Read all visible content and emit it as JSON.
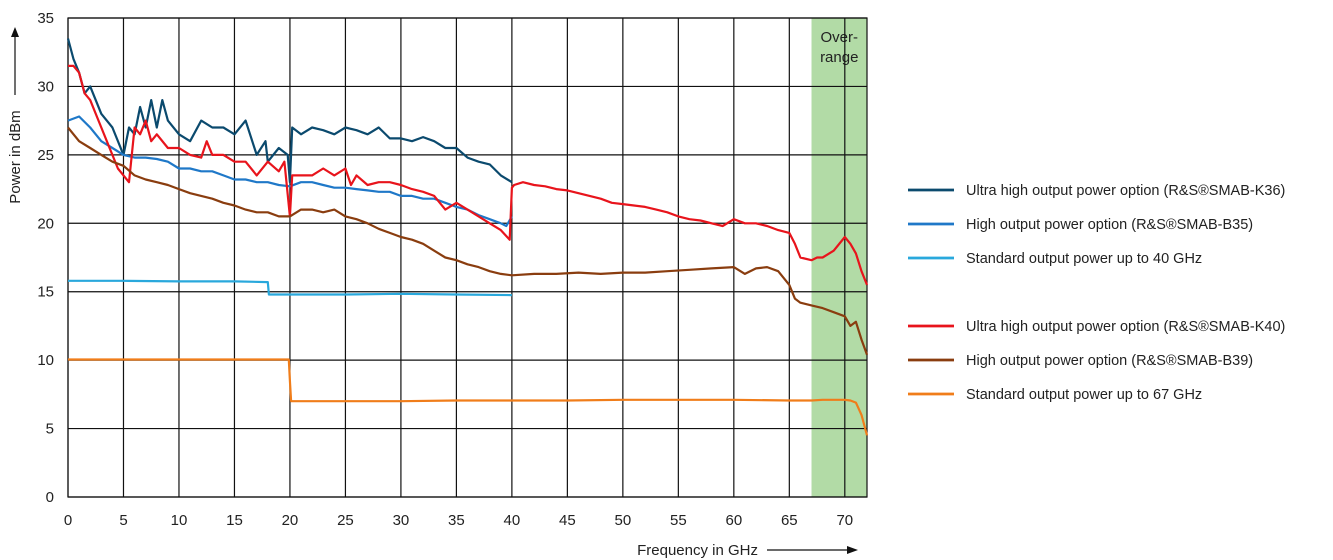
{
  "chart_data": {
    "type": "line",
    "xlabel": "Frequency in GHz",
    "ylabel": "Power in dBm",
    "xlim": [
      0,
      72
    ],
    "ylim": [
      0,
      35
    ],
    "x_ticks": [
      0,
      5,
      10,
      15,
      20,
      25,
      30,
      35,
      40,
      45,
      50,
      55,
      60,
      65,
      70
    ],
    "y_ticks": [
      0,
      5,
      10,
      15,
      20,
      25,
      30,
      35
    ],
    "grid": true,
    "legend_placement": "right",
    "overrange": {
      "label_lines": [
        "Over-",
        "range"
      ],
      "x_start": 67,
      "x_end": 72,
      "color": "#b2dba6"
    },
    "series": [
      {
        "name": "Ultra high output power option (R&S®SMAB-K36)",
        "color": "#0b4a6e",
        "x": [
          0,
          0.5,
          1,
          1.5,
          2,
          3,
          4,
          5,
          5.5,
          6,
          6.5,
          7,
          7.5,
          8,
          8.5,
          9,
          10,
          11,
          12,
          13,
          14,
          15,
          16,
          17,
          17.8,
          18,
          19,
          19.8,
          20,
          20.2,
          21,
          22,
          23,
          24,
          25,
          26,
          27,
          28,
          29,
          30,
          31,
          32,
          33,
          34,
          35,
          36,
          37,
          38,
          39,
          40
        ],
        "y": [
          33.5,
          32,
          31,
          29.5,
          30,
          28,
          27,
          25,
          27,
          26.5,
          28.5,
          27,
          29,
          27,
          29,
          27.5,
          26.5,
          26,
          27.5,
          27,
          27,
          26.5,
          27.5,
          25,
          26,
          24.5,
          25.5,
          25,
          23,
          27,
          26.5,
          27,
          26.8,
          26.5,
          27,
          26.8,
          26.5,
          27,
          26.2,
          26.2,
          26,
          26.3,
          26,
          25.5,
          25.5,
          24.8,
          24.5,
          24.3,
          23.5,
          23
        ]
      },
      {
        "name": "High output power option (R&S®SMAB-B35)",
        "color": "#1f78c8",
        "x": [
          0,
          1,
          2,
          3,
          4,
          5,
          6,
          7,
          8,
          9,
          10,
          11,
          12,
          13,
          14,
          15,
          16,
          17,
          18,
          19,
          20,
          21,
          22,
          23,
          24,
          25,
          26,
          27,
          28,
          29,
          30,
          31,
          32,
          33,
          34,
          35,
          36,
          37,
          38,
          39,
          39.5,
          40
        ],
        "y": [
          27.5,
          27.8,
          27,
          26,
          25.5,
          25,
          24.8,
          24.8,
          24.7,
          24.5,
          24,
          24,
          23.8,
          23.8,
          23.5,
          23.2,
          23.2,
          23,
          23,
          22.8,
          22.7,
          23,
          23,
          22.8,
          22.6,
          22.6,
          22.5,
          22.4,
          22.3,
          22.3,
          22,
          22,
          21.8,
          21.8,
          21.5,
          21.2,
          21,
          20.6,
          20.3,
          20,
          19.8,
          20.5
        ]
      },
      {
        "name": "Standard output power up to 40 GHz",
        "color": "#29a8dc",
        "x": [
          0,
          5,
          10,
          15,
          18,
          18.1,
          20,
          25,
          30,
          35,
          40
        ],
        "y": [
          15.8,
          15.8,
          15.75,
          15.75,
          15.7,
          14.8,
          14.8,
          14.8,
          14.85,
          14.8,
          14.75
        ]
      },
      {
        "name": "Ultra high output power option (R&S®SMAB-K40)",
        "color": "#e8141c",
        "x": [
          0,
          0.5,
          1,
          1.5,
          2,
          3,
          4,
          4.5,
          5,
          5.5,
          6,
          6.5,
          7,
          7.5,
          8,
          9,
          10,
          11,
          12,
          12.5,
          13,
          14,
          15,
          16,
          17,
          18,
          19,
          19.5,
          20,
          20.2,
          21,
          22,
          23,
          24,
          25,
          25.5,
          26,
          27,
          28,
          29,
          30,
          31,
          32,
          33,
          34,
          35,
          36,
          37,
          38,
          39,
          39.8,
          40,
          40.2,
          41,
          42,
          43,
          44,
          45,
          46,
          47,
          48,
          49,
          50,
          51,
          52,
          53,
          54,
          55,
          56,
          57,
          58,
          59,
          60,
          61,
          62,
          63,
          64,
          65,
          65.5,
          66,
          67,
          67.5,
          68,
          69,
          70,
          70.5,
          71,
          71.5,
          72
        ],
        "y": [
          31.5,
          31.5,
          31,
          29.5,
          29,
          27,
          25,
          24,
          23.5,
          23,
          27,
          26.5,
          27.5,
          26,
          26.5,
          25.5,
          25.5,
          25,
          24.8,
          26,
          25,
          25,
          24.5,
          24.5,
          23.5,
          24.5,
          23.8,
          24.5,
          20.5,
          23.5,
          23.5,
          23.5,
          24,
          23.5,
          24,
          22.8,
          23.5,
          22.8,
          23,
          23,
          22.8,
          22.5,
          22.3,
          22,
          21,
          21.5,
          21,
          20.5,
          20,
          19.5,
          18.8,
          22.6,
          22.8,
          23,
          22.8,
          22.7,
          22.5,
          22.4,
          22.2,
          22,
          21.8,
          21.5,
          21.4,
          21.3,
          21.2,
          21,
          20.8,
          20.5,
          20.3,
          20.2,
          20,
          19.8,
          20.3,
          20,
          20,
          19.8,
          19.5,
          19.3,
          18.5,
          17.5,
          17.3,
          17.5,
          17.5,
          18,
          19,
          18.5,
          17.8,
          16.5,
          15.5
        ]
      },
      {
        "name": "High output power option (R&S®SMAB-B39)",
        "color": "#8a3d0f",
        "x": [
          0,
          1,
          2,
          3,
          4,
          5,
          6,
          7,
          8,
          9,
          10,
          11,
          12,
          13,
          14,
          15,
          16,
          17,
          18,
          19,
          20,
          21,
          22,
          23,
          24,
          25,
          26,
          27,
          28,
          29,
          30,
          31,
          32,
          33,
          34,
          35,
          36,
          37,
          38,
          39,
          40,
          42,
          44,
          46,
          48,
          50,
          52,
          54,
          56,
          58,
          60,
          61,
          62,
          63,
          64,
          65,
          65.5,
          66,
          67,
          68,
          69,
          70,
          70.5,
          71,
          71.5,
          72
        ],
        "y": [
          27,
          26,
          25.5,
          25,
          24.5,
          24.2,
          23.5,
          23.2,
          23,
          22.8,
          22.5,
          22.2,
          22,
          21.8,
          21.5,
          21.3,
          21,
          20.8,
          20.8,
          20.5,
          20.5,
          21,
          21,
          20.8,
          21,
          20.5,
          20.3,
          20,
          19.6,
          19.3,
          19,
          18.8,
          18.5,
          18,
          17.5,
          17.3,
          17,
          16.8,
          16.5,
          16.3,
          16.2,
          16.3,
          16.3,
          16.4,
          16.3,
          16.4,
          16.4,
          16.5,
          16.6,
          16.7,
          16.8,
          16.3,
          16.7,
          16.8,
          16.5,
          15.5,
          14.5,
          14.2,
          14,
          13.8,
          13.5,
          13.2,
          12.5,
          12.8,
          11.5,
          10.4
        ]
      },
      {
        "name": "Standard output power up to 67 GHz",
        "color": "#f07d1a",
        "x": [
          0,
          5,
          10,
          15,
          19.9,
          20,
          20.1,
          25,
          30,
          35,
          40,
          45,
          50,
          55,
          60,
          65,
          67,
          68,
          69,
          70,
          70.5,
          71,
          71.5,
          72
        ],
        "y": [
          10.05,
          10.05,
          10.05,
          10.05,
          10.05,
          8.5,
          7,
          7,
          7,
          7.05,
          7.05,
          7.05,
          7.1,
          7.1,
          7.1,
          7.05,
          7.05,
          7.1,
          7.1,
          7.1,
          7.05,
          6.9,
          6,
          4.5
        ]
      }
    ]
  }
}
